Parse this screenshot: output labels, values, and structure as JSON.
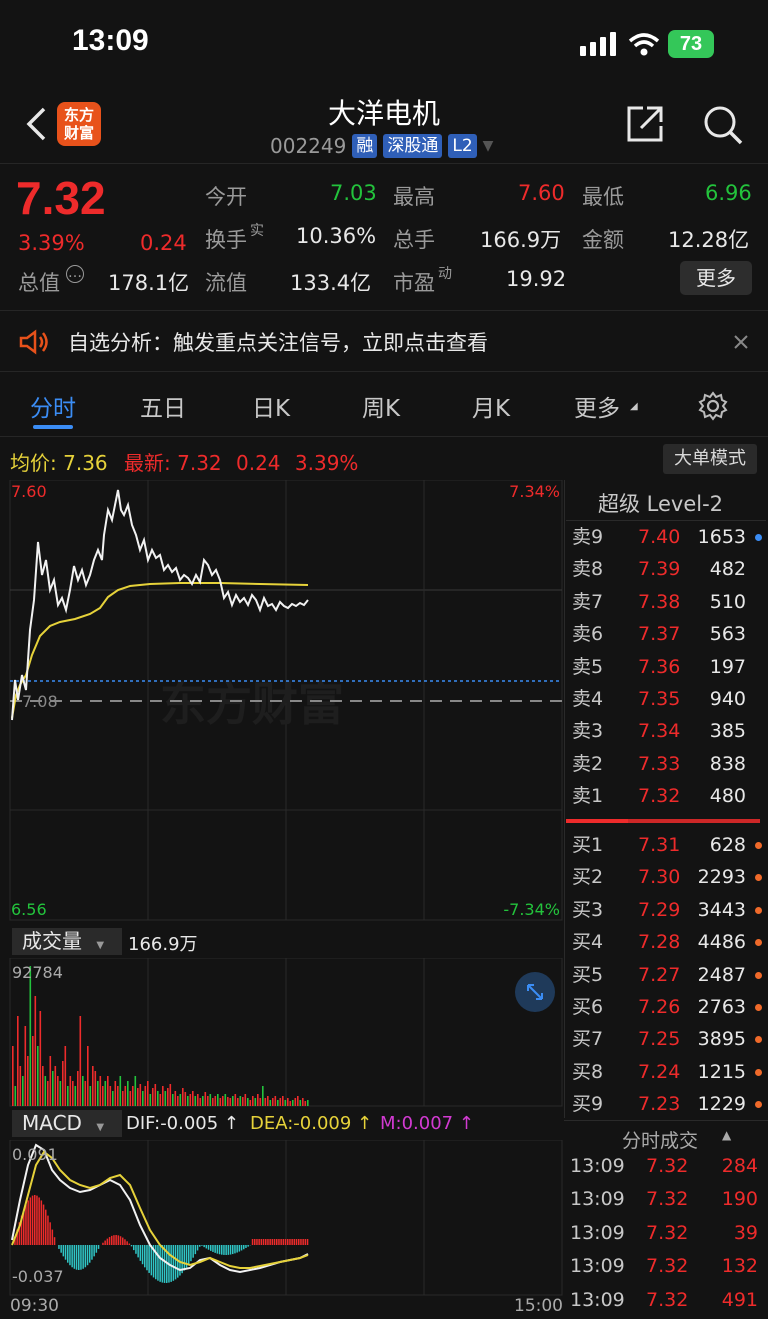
{
  "status": {
    "time": "13:09",
    "battery": "73"
  },
  "header": {
    "title": "大洋电机",
    "code": "002249",
    "tags": [
      "融",
      "深股通",
      "L2"
    ],
    "logo": [
      "东方",
      "财富"
    ]
  },
  "quote": {
    "price": "7.32",
    "change_pct": "3.39%",
    "change": "0.24",
    "open_label": "今开",
    "open": "7.03",
    "high_label": "最高",
    "high": "7.60",
    "low_label": "最低",
    "low": "6.96",
    "turnover_label": "换手",
    "turnover_sup": "实",
    "turnover": "10.36%",
    "volume_label": "总手",
    "volume": "166.9万",
    "amount_label": "金额",
    "amount": "12.28亿",
    "mktcap_label": "总值",
    "mktcap": "178.1亿",
    "float_label": "流值",
    "float": "133.4亿",
    "pe_label": "市盈",
    "pe_sup": "动",
    "pe": "19.92",
    "more": "更多"
  },
  "notice": {
    "text": "自选分析：触发重点关注信号，立即点击查看"
  },
  "tabs": [
    "分时",
    "五日",
    "日K",
    "周K",
    "月K",
    "更多"
  ],
  "infoline": {
    "avg_label": "均价:",
    "avg": "7.36",
    "latest_label": "最新:",
    "latest": "7.32",
    "chg": "0.24",
    "pct": "3.39%",
    "big_order": "大单模式"
  },
  "chart_axes": {
    "top_price": "7.60",
    "bottom_price": "6.56",
    "top_pct": "7.34%",
    "bottom_pct": "-7.34%",
    "mid_price": "7.08",
    "watermark": "东方财富",
    "vol_label": "成交量",
    "vol_total": "166.9万",
    "vol_max": "92784",
    "macd_label": "MACD",
    "dif": "DIF:-0.005 ↑",
    "dea": "DEA:-0.009 ↑",
    "m": "M:0.007 ↑",
    "macd_top": "0.091",
    "macd_bottom": "-0.037",
    "time_start": "09:30",
    "time_end": "15:00"
  },
  "orderbook": {
    "title": "超级 Level-2",
    "asks": [
      {
        "label": "卖9",
        "price": "7.40",
        "vol": "1653"
      },
      {
        "label": "卖8",
        "price": "7.39",
        "vol": "482"
      },
      {
        "label": "卖7",
        "price": "7.38",
        "vol": "510"
      },
      {
        "label": "卖6",
        "price": "7.37",
        "vol": "563"
      },
      {
        "label": "卖5",
        "price": "7.36",
        "vol": "197"
      },
      {
        "label": "卖4",
        "price": "7.35",
        "vol": "940"
      },
      {
        "label": "卖3",
        "price": "7.34",
        "vol": "385"
      },
      {
        "label": "卖2",
        "price": "7.33",
        "vol": "838"
      },
      {
        "label": "卖1",
        "price": "7.32",
        "vol": "480"
      }
    ],
    "bids": [
      {
        "label": "买1",
        "price": "7.31",
        "vol": "628"
      },
      {
        "label": "买2",
        "price": "7.30",
        "vol": "2293"
      },
      {
        "label": "买3",
        "price": "7.29",
        "vol": "3443"
      },
      {
        "label": "买4",
        "price": "7.28",
        "vol": "4486"
      },
      {
        "label": "买5",
        "price": "7.27",
        "vol": "2487"
      },
      {
        "label": "买6",
        "price": "7.26",
        "vol": "2763"
      },
      {
        "label": "买7",
        "price": "7.25",
        "vol": "3895"
      },
      {
        "label": "买8",
        "price": "7.24",
        "vol": "1215"
      },
      {
        "label": "买9",
        "price": "7.23",
        "vol": "1229"
      }
    ]
  },
  "ticks": {
    "title": "分时成交",
    "rows": [
      {
        "time": "13:09",
        "price": "7.32",
        "vol": "284"
      },
      {
        "time": "13:09",
        "price": "7.32",
        "vol": "190"
      },
      {
        "time": "13:09",
        "price": "7.32",
        "vol": "39"
      },
      {
        "time": "13:09",
        "price": "7.32",
        "vol": "132"
      },
      {
        "time": "13:09",
        "price": "7.32",
        "vol": "491"
      }
    ]
  },
  "colors": {
    "up": "#ee2b2b",
    "down": "#23c33c",
    "accent": "#3b8df5",
    "avg_line": "#e6d23a"
  }
}
